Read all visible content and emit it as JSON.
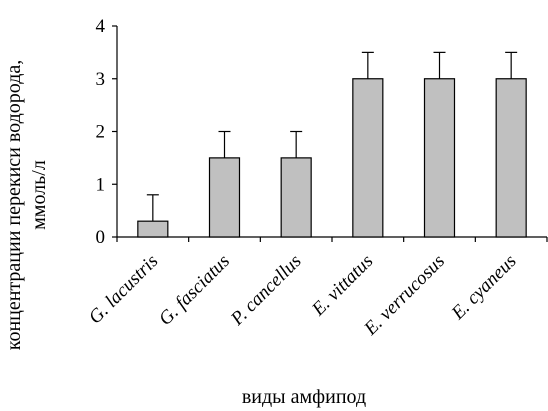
{
  "chart_data": {
    "type": "bar",
    "categories": [
      "G. lacustris",
      "G. fasciatus",
      "P. cancellus",
      "E. vittatus",
      "E. verrucosus",
      "E. cyaneus"
    ],
    "values": [
      0.3,
      1.5,
      1.5,
      3.0,
      3.0,
      3.0
    ],
    "errors": [
      0.5,
      0.5,
      0.5,
      0.5,
      0.5,
      0.5
    ],
    "ylim": [
      0,
      4
    ],
    "yticks": [
      "0",
      "1",
      "2",
      "3",
      "4"
    ],
    "xlabel": "виды амфипод",
    "ylabel_line1": "концентрации перекиси водорода,",
    "ylabel_line2": "ммоль/л",
    "bar_color": "#c0c0c0",
    "grid": false,
    "legend": "none"
  }
}
